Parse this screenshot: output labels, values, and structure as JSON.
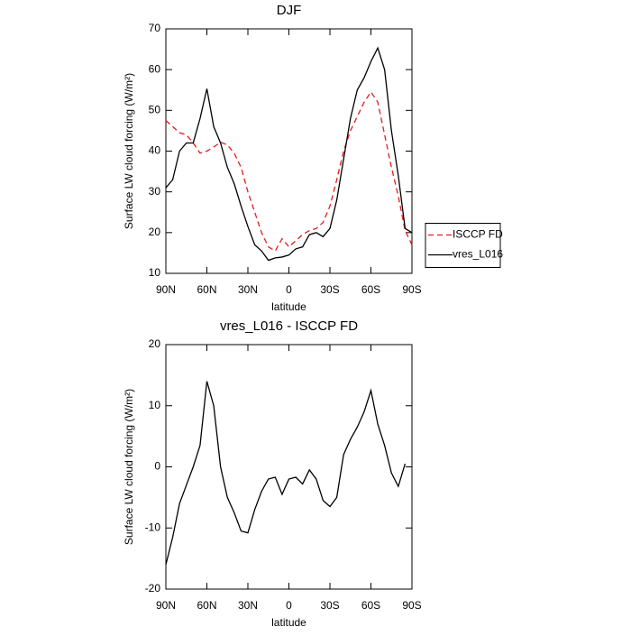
{
  "chart_data": [
    {
      "type": "line",
      "title": "DJF",
      "xlabel": "latitude",
      "ylabel": "Surface LW cloud forcing (W/m²)",
      "x": [
        90,
        85,
        80,
        75,
        70,
        65,
        60,
        55,
        50,
        45,
        40,
        35,
        30,
        25,
        20,
        15,
        10,
        5,
        0,
        -5,
        -10,
        -15,
        -20,
        -25,
        -30,
        -35,
        -40,
        -45,
        -50,
        -55,
        -60,
        -65,
        -70,
        -75,
        -80,
        -85,
        -90
      ],
      "xlim": [
        90,
        -90
      ],
      "xticks": [
        {
          "value": 90,
          "label": "90N"
        },
        {
          "value": 60,
          "label": "60N"
        },
        {
          "value": 30,
          "label": "30N"
        },
        0,
        {
          "value": -30,
          "label": "30S"
        },
        {
          "value": -60,
          "label": "60S"
        },
        {
          "value": -90,
          "label": "90S"
        }
      ],
      "ylim": [
        10,
        70
      ],
      "yticks": [
        10,
        20,
        30,
        40,
        50,
        60,
        70
      ],
      "legend": "right",
      "series": [
        {
          "name": "ISCCP FD",
          "color": "#e41a1c",
          "dashed": true,
          "values": [
            47.5,
            46,
            44.5,
            44,
            42,
            39.5,
            40,
            41,
            42.2,
            41.5,
            39.5,
            36,
            30,
            25,
            20,
            16.5,
            15.5,
            18.5,
            16.5,
            18,
            19.5,
            20.5,
            21,
            22.5,
            26.5,
            33,
            40,
            45,
            48.5,
            52,
            54.5,
            52,
            44,
            36,
            29,
            20.5,
            17
          ]
        },
        {
          "name": "vres_L016",
          "color": "#000000",
          "dashed": false,
          "values": [
            31,
            33,
            40,
            42,
            42,
            48,
            55.3,
            46,
            42,
            36,
            32,
            26.5,
            21.5,
            17,
            15.5,
            13.2,
            13.8,
            14,
            14.5,
            16,
            16.5,
            19.5,
            20,
            19,
            21,
            28,
            38,
            48,
            55,
            58,
            62,
            65.3,
            60,
            45,
            34,
            21,
            20
          ]
        }
      ]
    },
    {
      "type": "line",
      "title": "vres_L016 - ISCCP FD",
      "xlabel": "latitude",
      "ylabel": "Surface LW cloud forcing (W/m²)",
      "x": [
        90,
        85,
        80,
        75,
        70,
        65,
        60,
        55,
        50,
        45,
        40,
        35,
        30,
        25,
        20,
        15,
        10,
        5,
        0,
        -5,
        -10,
        -15,
        -20,
        -25,
        -30,
        -35,
        -40,
        -45,
        -50,
        -55,
        -60,
        -65,
        -70,
        -75,
        -80,
        -85,
        -90
      ],
      "xlim": [
        90,
        -90
      ],
      "xticks": [
        {
          "value": 90,
          "label": "90N"
        },
        {
          "value": 60,
          "label": "60N"
        },
        {
          "value": 30,
          "label": "30N"
        },
        0,
        {
          "value": -30,
          "label": "30S"
        },
        {
          "value": -60,
          "label": "60S"
        },
        {
          "value": -90,
          "label": "90S"
        }
      ],
      "ylim": [
        -20,
        20
      ],
      "yticks": [
        -20,
        -10,
        0,
        10,
        20
      ],
      "series": [
        {
          "color": "#000000",
          "dashed": false,
          "values": [
            -16,
            -11.5,
            -6,
            -3,
            0,
            3.5,
            14,
            10,
            0,
            -5,
            -7.5,
            -10.5,
            -10.8,
            -7,
            -4,
            -2,
            -1.7,
            -4.5,
            -2,
            -1.7,
            -2.8,
            -0.5,
            -2,
            -5.5,
            -6.5,
            -5,
            2,
            4.5,
            6.5,
            9,
            12.5,
            7,
            3.5,
            -1,
            -3.2,
            0.5,
            null
          ]
        }
      ]
    }
  ]
}
